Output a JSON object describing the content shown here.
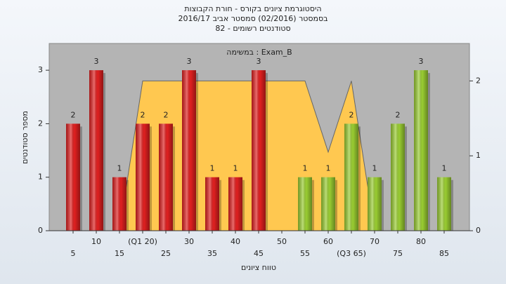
{
  "chart_data": {
    "type": "bar",
    "title_lines": [
      "היסטוגרמת ציונים בקורס - חורת הקבוצות",
      "בסמסטר  (02/2016)  סמסטר אביב 2016/17",
      "סטודנטים רשומים - 82"
    ],
    "annotation": "במשימה : Exam_B",
    "xlabel": "טווח ציונים",
    "ylabel": "מספר סטודנטים",
    "categories": [
      "5",
      "10",
      "15",
      "(Q1 20)",
      "25",
      "30",
      "35",
      "40",
      "45",
      "50",
      "55",
      "60",
      "(Q3 65)",
      "70",
      "75",
      "80",
      "85"
    ],
    "values": [
      2,
      3,
      1,
      2,
      2,
      3,
      1,
      1,
      3,
      0,
      1,
      1,
      2,
      1,
      2,
      3,
      1
    ],
    "colors": [
      "#e02020",
      "#e02020",
      "#e02020",
      "#e02020",
      "#e02020",
      "#e02020",
      "#e02020",
      "#e02020",
      "#e02020",
      "#e02020",
      "#9acd32",
      "#9acd32",
      "#9acd32",
      "#9acd32",
      "#9acd32",
      "#9acd32",
      "#9acd32"
    ],
    "area": {
      "color": "#ffc850",
      "axis": "y2",
      "values": [
        null,
        null,
        0,
        2,
        2,
        2,
        2,
        2,
        2,
        2,
        2,
        1.05,
        2,
        0,
        null,
        null,
        null
      ]
    },
    "ylim": [
      0,
      3.5
    ],
    "yticks": [
      0,
      1,
      2,
      3
    ],
    "y2lim": [
      0,
      2.5
    ],
    "y2ticks": [
      0,
      1,
      2
    ]
  }
}
